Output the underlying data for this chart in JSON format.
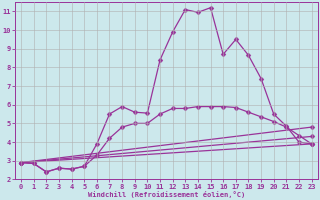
{
  "xlabel": "Windchill (Refroidissement éolien,°C)",
  "background_color": "#cce8ec",
  "line_color": "#993399",
  "grid_color": "#b0b0b0",
  "xlim": [
    -0.5,
    23.5
  ],
  "ylim": [
    2,
    11.5
  ],
  "yticks": [
    2,
    3,
    4,
    5,
    6,
    7,
    8,
    9,
    10,
    11
  ],
  "xticks": [
    0,
    1,
    2,
    3,
    4,
    5,
    6,
    7,
    8,
    9,
    10,
    11,
    12,
    13,
    14,
    15,
    16,
    17,
    18,
    19,
    20,
    21,
    22,
    23
  ],
  "lines": [
    {
      "x": [
        0,
        1,
        2,
        3,
        4,
        5,
        6,
        7,
        8,
        9,
        10,
        11,
        12,
        13,
        14,
        15,
        16,
        17,
        18,
        19,
        20,
        21,
        22,
        23
      ],
      "y": [
        2.9,
        2.85,
        2.4,
        2.6,
        2.55,
        2.7,
        3.9,
        5.5,
        5.9,
        5.6,
        5.55,
        8.4,
        9.9,
        11.1,
        10.95,
        11.2,
        8.7,
        9.5,
        8.65,
        7.4,
        5.5,
        4.85,
        4.0,
        3.9
      ]
    },
    {
      "x": [
        0,
        1,
        2,
        3,
        4,
        5,
        6,
        7,
        8,
        9,
        10,
        11,
        12,
        13,
        14,
        15,
        16,
        17,
        18,
        19,
        20,
        21,
        22,
        23
      ],
      "y": [
        2.9,
        2.85,
        2.4,
        2.6,
        2.55,
        2.7,
        3.3,
        4.2,
        4.8,
        5.0,
        5.0,
        5.5,
        5.8,
        5.8,
        5.9,
        5.9,
        5.9,
        5.85,
        5.6,
        5.35,
        5.1,
        4.8,
        4.35,
        3.9
      ]
    },
    {
      "x": [
        0,
        23
      ],
      "y": [
        2.9,
        4.8
      ]
    },
    {
      "x": [
        0,
        23
      ],
      "y": [
        2.9,
        4.3
      ]
    },
    {
      "x": [
        0,
        23
      ],
      "y": [
        2.9,
        3.9
      ]
    }
  ],
  "markersize": 2.5,
  "linewidth": 0.9
}
